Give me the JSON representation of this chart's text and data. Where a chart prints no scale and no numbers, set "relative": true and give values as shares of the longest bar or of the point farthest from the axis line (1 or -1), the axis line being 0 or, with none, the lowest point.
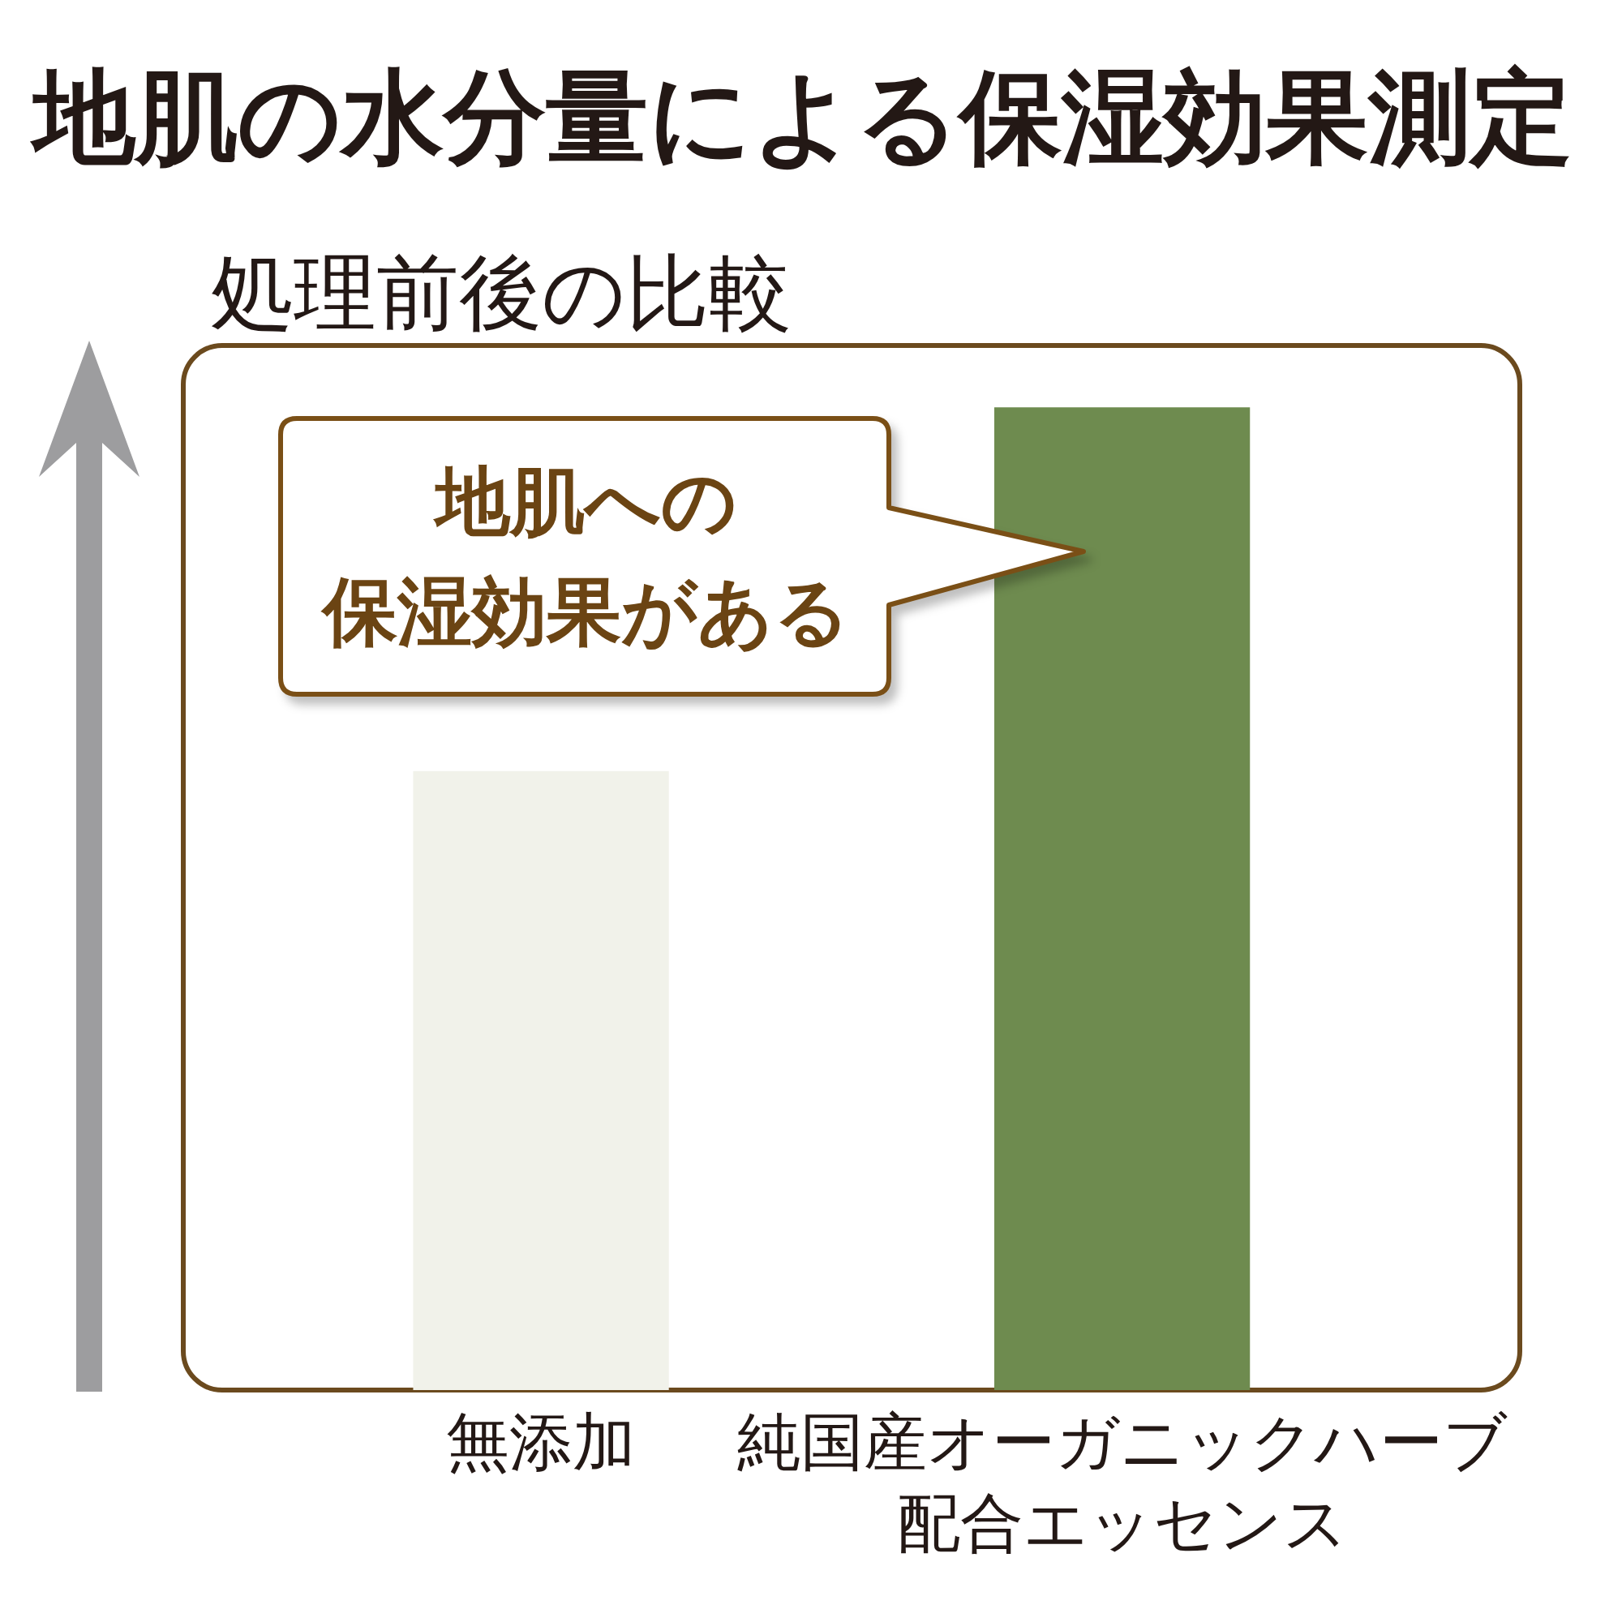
{
  "chart_data": {
    "type": "bar",
    "title": "地肌の水分量による保湿効果測定",
    "subtitle": "処理前後の比較",
    "categories": [
      "無添加",
      "純国産オーガニックハーブ配合エッセンス"
    ],
    "values": [
      0.63,
      1
    ],
    "colors": [
      "#f1f2ea",
      "#6e8b4f"
    ],
    "relative": true,
    "annotations": [
      "地肌への保湿効果がある"
    ]
  }
}
